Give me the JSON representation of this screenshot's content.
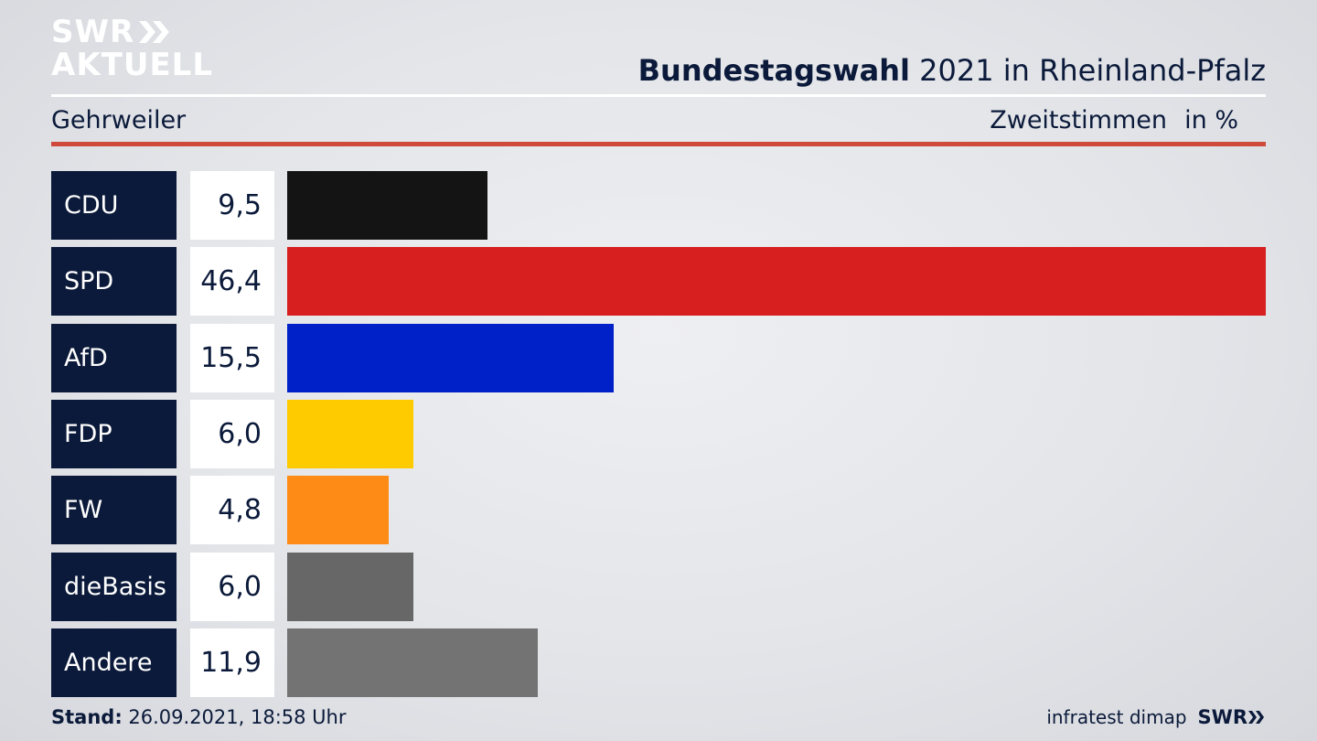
{
  "brand": {
    "line1": "SWR",
    "line2": "AKTUELL",
    "chevron_icon": "double-chevron-right-icon"
  },
  "header": {
    "title_bold": "Bundestagswahl",
    "title_rest": " 2021 in Rheinland-Pfalz",
    "region": "Gehrweiler",
    "vote_type": "Zweitstimmen",
    "unit": "in %"
  },
  "colors": {
    "navy": "#0b1a3a",
    "accent_rule": "#d04a3c"
  },
  "chart_data": {
    "type": "bar",
    "orientation": "horizontal",
    "categories": [
      "CDU",
      "SPD",
      "AfD",
      "FDP",
      "FW",
      "dieBasis",
      "Andere"
    ],
    "values": [
      9.5,
      46.4,
      15.5,
      6.0,
      4.8,
      6.0,
      11.9
    ],
    "value_labels": [
      "9,5",
      "46,4",
      "15,5",
      "6,0",
      "4,8",
      "6,0",
      "11,9"
    ],
    "colors": [
      "#141414",
      "#d71f1f",
      "#0020c8",
      "#fdcb00",
      "#ff8b17",
      "#676767",
      "#737373"
    ],
    "title": "Bundestagswahl 2021 in Rheinland-Pfalz",
    "xlim": [
      0,
      46.4
    ]
  },
  "footer": {
    "stand_label": "Stand:",
    "stand_value": " 26.09.2021, 18:58 Uhr",
    "source": "infratest dimap",
    "source_brand": "SWR"
  }
}
